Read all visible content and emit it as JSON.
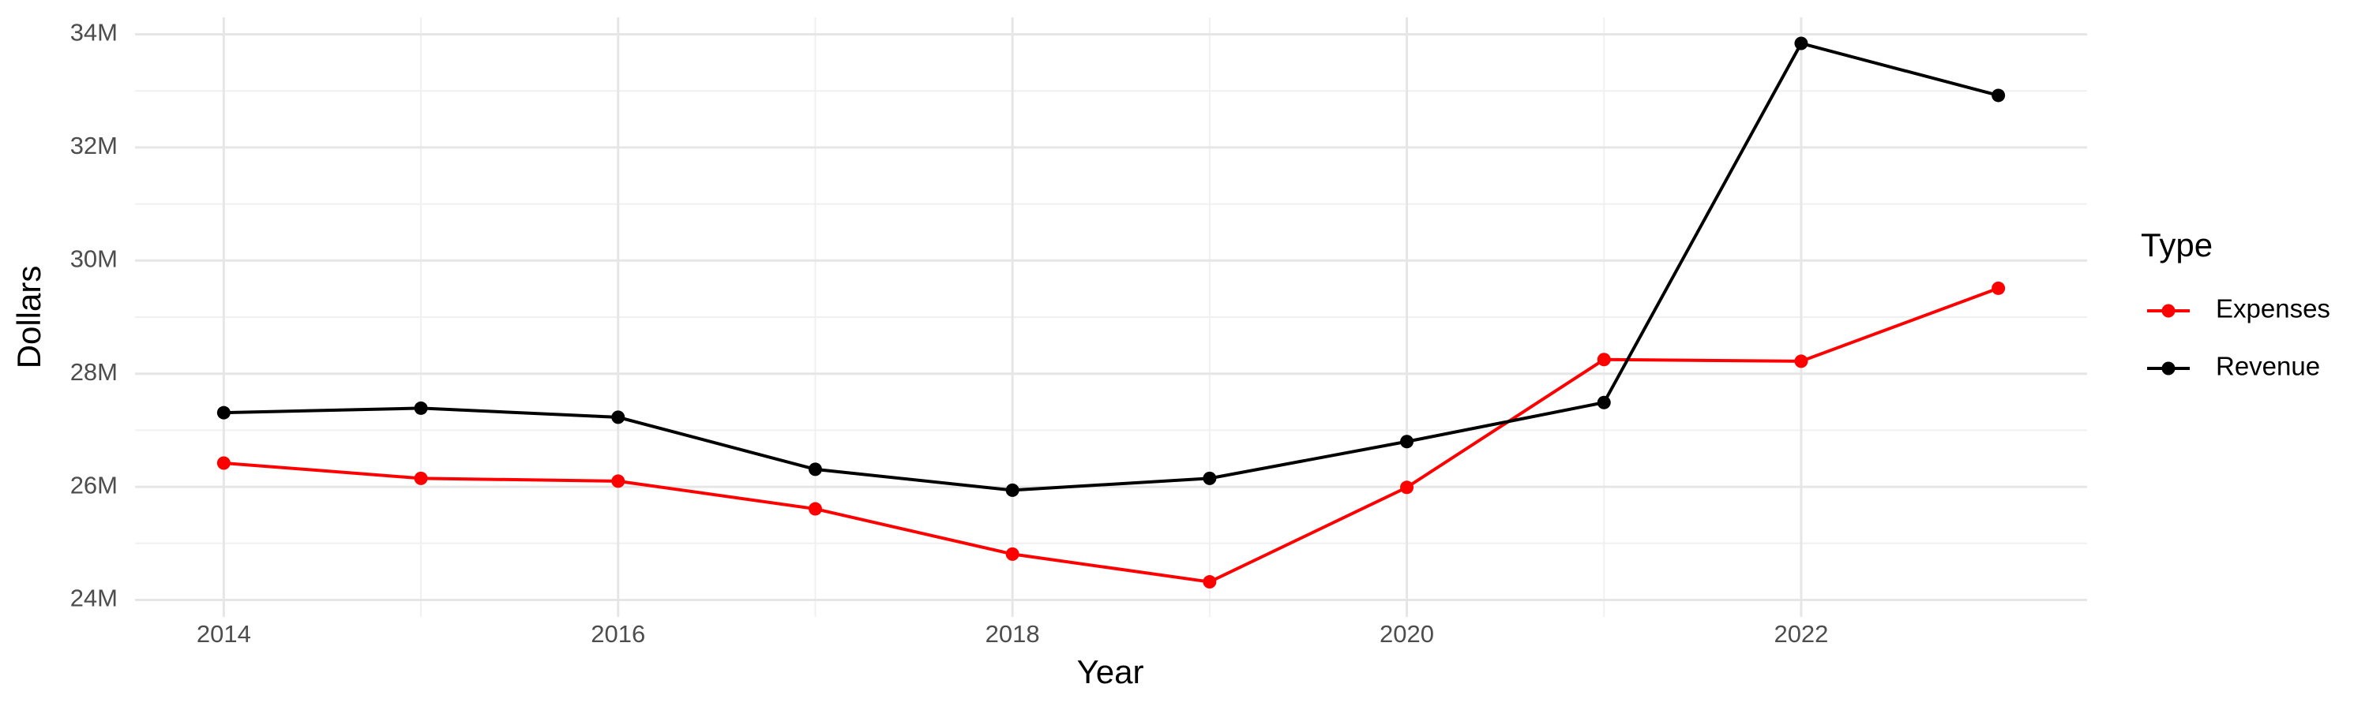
{
  "chart_data": {
    "type": "line",
    "x_label": "Year",
    "y_label": "Dollars",
    "legend_title": "Type",
    "x": [
      2014,
      2015,
      2016,
      2017,
      2018,
      2019,
      2020,
      2021,
      2022,
      2023
    ],
    "series": [
      {
        "name": "Expenses",
        "color": "#ff0000",
        "values": [
          26420000,
          26150000,
          26100000,
          25610000,
          24810000,
          24320000,
          25990000,
          28250000,
          28220000,
          29510000
        ]
      },
      {
        "name": "Revenue",
        "color": "#000000",
        "values": [
          27310000,
          27390000,
          27230000,
          26310000,
          25940000,
          26150000,
          26800000,
          27490000,
          33840000,
          32920000
        ]
      }
    ],
    "xlim": [
      2013.55,
      2023.45
    ],
    "xticks": [
      2014,
      2016,
      2018,
      2020,
      2022
    ],
    "ylim": [
      23700000,
      34300000
    ],
    "yticks": [
      {
        "value": 24000000,
        "label": "24M"
      },
      {
        "value": 26000000,
        "label": "26M"
      },
      {
        "value": 28000000,
        "label": "28M"
      },
      {
        "value": 30000000,
        "label": "30M"
      },
      {
        "value": 32000000,
        "label": "32M"
      },
      {
        "value": 34000000,
        "label": "34M"
      }
    ],
    "grid": true,
    "legend_position": "right"
  }
}
